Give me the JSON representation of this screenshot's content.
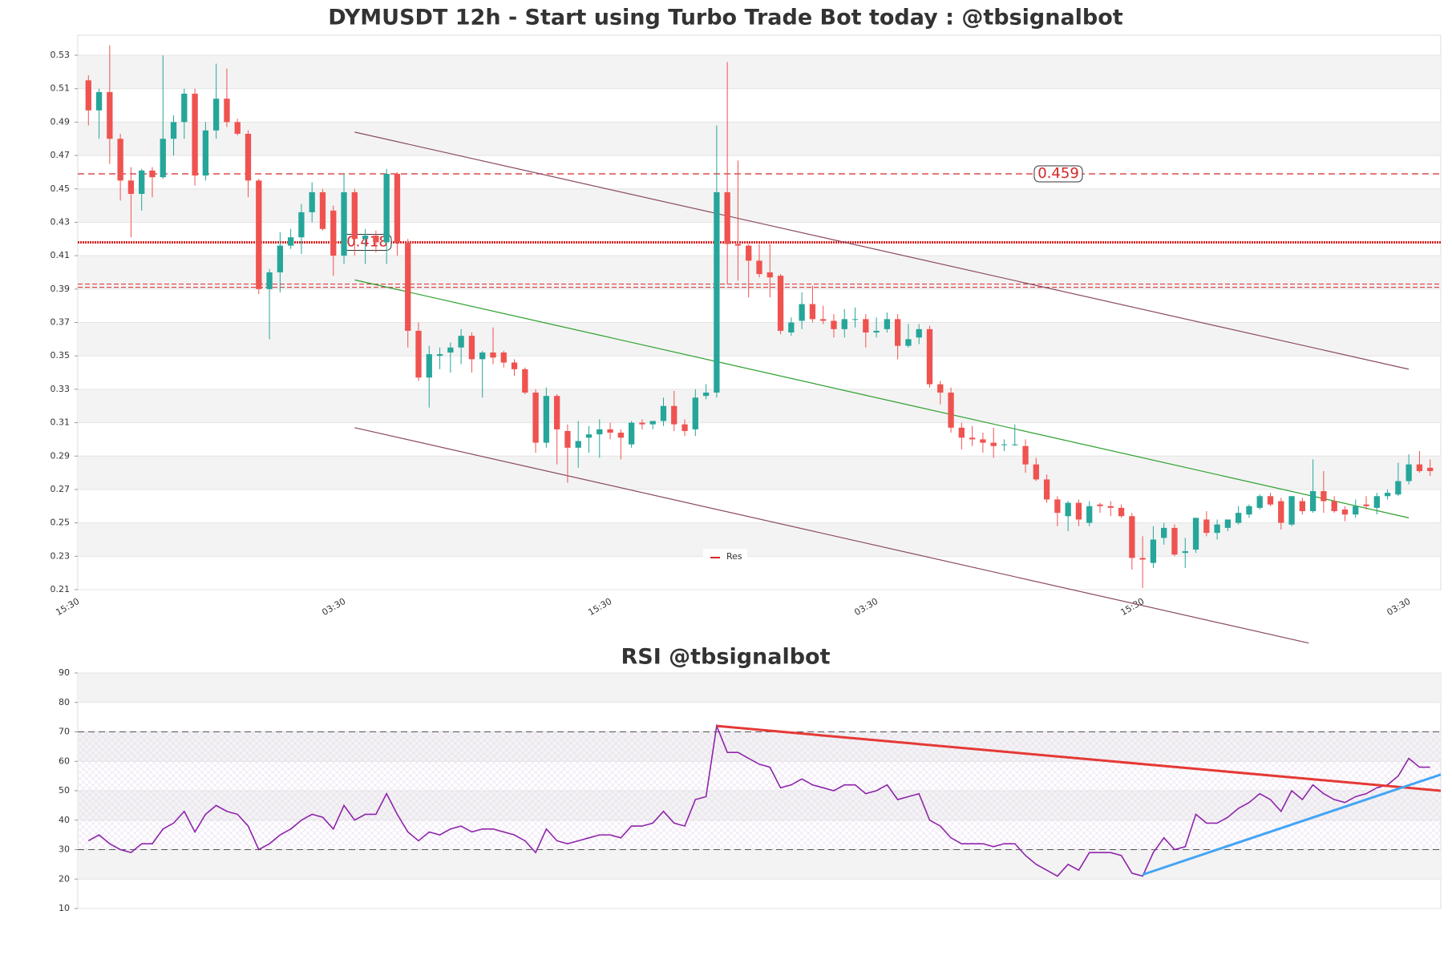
{
  "chart_data": [
    {
      "type": "candlestick",
      "title": "DYMUSDT 12h - Start using Turbo Trade Bot today : @tbsignalbot",
      "categories": [
        "15:30",
        null,
        null,
        null,
        null,
        null,
        null,
        null,
        null,
        null,
        null,
        null,
        null,
        null,
        null,
        null,
        null,
        null,
        null,
        null,
        null,
        null,
        null,
        null,
        null,
        "03:30",
        null,
        null,
        null,
        null,
        null,
        null,
        null,
        null,
        null,
        null,
        null,
        null,
        null,
        null,
        null,
        null,
        null,
        null,
        null,
        null,
        null,
        null,
        null,
        null,
        "15:30",
        null,
        null,
        null,
        null,
        null,
        null,
        null,
        null,
        null,
        null,
        null,
        null,
        null,
        null,
        null,
        null,
        null,
        null,
        null,
        null,
        null,
        null,
        null,
        null,
        "03:30",
        null,
        null,
        null,
        null,
        null,
        null,
        null,
        null,
        null,
        null,
        null,
        null,
        null,
        null,
        null,
        null,
        null,
        null,
        null,
        null,
        null,
        null,
        null,
        null,
        "15:30",
        null,
        null,
        null,
        null,
        null,
        null,
        null,
        null,
        null,
        null,
        null,
        null,
        null,
        null,
        null,
        null,
        null,
        null,
        null,
        null,
        null,
        null,
        null,
        null,
        "03:30",
        null
      ],
      "open": [
        0.515,
        0.497,
        0.508,
        0.48,
        0.455,
        0.447,
        0.461,
        0.457,
        0.48,
        0.49,
        0.507,
        0.458,
        0.485,
        0.504,
        0.49,
        0.483,
        0.455,
        0.39,
        0.4,
        0.416,
        0.421,
        0.436,
        0.448,
        0.437,
        0.41,
        0.448,
        0.42,
        0.422,
        0.418,
        0.459,
        0.418,
        0.365,
        0.337,
        0.35,
        0.352,
        0.355,
        0.362,
        0.348,
        0.352,
        0.352,
        0.346,
        0.342,
        0.328,
        0.298,
        0.326,
        0.305,
        0.295,
        0.301,
        0.303,
        0.306,
        0.304,
        0.297,
        0.31,
        0.309,
        0.311,
        0.32,
        0.309,
        0.306,
        0.326,
        0.328,
        0.448,
        0.417,
        0.416,
        0.407,
        0.4,
        0.398,
        0.364,
        0.371,
        0.381,
        0.372,
        0.371,
        0.366,
        0.372,
        0.372,
        0.364,
        0.366,
        0.372,
        0.356,
        0.361,
        0.366,
        0.333,
        0.328,
        0.307,
        0.301,
        0.3,
        0.298,
        0.297,
        0.297,
        0.296,
        0.285,
        0.276,
        0.264,
        0.254,
        0.262,
        0.25,
        0.261,
        0.26,
        0.259,
        0.254,
        0.229,
        0.226,
        0.241,
        0.247,
        0.232,
        0.234,
        0.252,
        0.244,
        0.247,
        0.25,
        0.255,
        0.259,
        0.266,
        0.263,
        0.249,
        0.263,
        0.257,
        0.269,
        0.263,
        0.258,
        0.255,
        0.261,
        0.259,
        0.266,
        0.267,
        0.275,
        0.285,
        0.283
      ],
      "high": [
        0.518,
        0.51,
        0.536,
        0.483,
        0.463,
        0.462,
        0.463,
        0.53,
        0.494,
        0.51,
        0.51,
        0.49,
        0.525,
        0.522,
        0.492,
        0.485,
        0.456,
        0.402,
        0.424,
        0.426,
        0.441,
        0.454,
        0.45,
        0.44,
        0.459,
        0.45,
        0.426,
        0.425,
        0.462,
        0.46,
        0.42,
        0.37,
        0.356,
        0.355,
        0.358,
        0.366,
        0.364,
        0.353,
        0.367,
        0.353,
        0.348,
        0.343,
        0.33,
        0.331,
        0.327,
        0.309,
        0.311,
        0.308,
        0.312,
        0.31,
        0.306,
        0.311,
        0.312,
        0.311,
        0.325,
        0.329,
        0.312,
        0.33,
        0.333,
        0.488,
        0.526,
        0.467,
        0.417,
        0.417,
        0.417,
        0.399,
        0.373,
        0.388,
        0.392,
        0.38,
        0.375,
        0.378,
        0.379,
        0.375,
        0.373,
        0.376,
        0.375,
        0.369,
        0.369,
        0.368,
        0.335,
        0.331,
        0.31,
        0.308,
        0.304,
        0.307,
        0.3,
        0.309,
        0.3,
        0.289,
        0.279,
        0.266,
        0.263,
        0.264,
        0.263,
        0.262,
        0.263,
        0.261,
        0.256,
        0.242,
        0.248,
        0.25,
        0.249,
        0.241,
        0.252,
        0.257,
        0.252,
        0.252,
        0.26,
        0.261,
        0.267,
        0.268,
        0.265,
        0.266,
        0.265,
        0.288,
        0.281,
        0.266,
        0.26,
        0.264,
        0.266,
        0.268,
        0.27,
        0.286,
        0.291,
        0.293,
        0.288
      ],
      "low": [
        0.488,
        0.48,
        0.465,
        0.443,
        0.421,
        0.437,
        0.445,
        0.456,
        0.47,
        0.48,
        0.452,
        0.455,
        0.48,
        0.487,
        0.482,
        0.445,
        0.387,
        0.36,
        0.388,
        0.414,
        0.411,
        0.43,
        0.425,
        0.398,
        0.405,
        0.41,
        0.405,
        0.412,
        0.405,
        0.41,
        0.355,
        0.335,
        0.319,
        0.342,
        0.34,
        0.345,
        0.34,
        0.325,
        0.345,
        0.343,
        0.338,
        0.327,
        0.292,
        0.295,
        0.285,
        0.274,
        0.283,
        0.292,
        0.289,
        0.3,
        0.288,
        0.295,
        0.306,
        0.306,
        0.308,
        0.305,
        0.302,
        0.302,
        0.324,
        0.325,
        0.393,
        0.395,
        0.385,
        0.397,
        0.385,
        0.363,
        0.362,
        0.366,
        0.37,
        0.369,
        0.361,
        0.361,
        0.367,
        0.355,
        0.361,
        0.364,
        0.348,
        0.355,
        0.357,
        0.331,
        0.321,
        0.304,
        0.294,
        0.296,
        0.292,
        0.289,
        0.293,
        0.296,
        0.28,
        0.275,
        0.262,
        0.248,
        0.245,
        0.248,
        0.248,
        0.256,
        0.254,
        0.253,
        0.222,
        0.211,
        0.223,
        0.237,
        0.23,
        0.223,
        0.232,
        0.242,
        0.24,
        0.245,
        0.249,
        0.253,
        0.258,
        0.26,
        0.246,
        0.248,
        0.255,
        0.256,
        0.256,
        0.256,
        0.251,
        0.253,
        0.258,
        0.255,
        0.264,
        0.266,
        0.273,
        0.28,
        0.278
      ],
      "close": [
        0.497,
        0.508,
        0.48,
        0.455,
        0.447,
        0.461,
        0.457,
        0.48,
        0.49,
        0.507,
        0.458,
        0.485,
        0.504,
        0.49,
        0.483,
        0.455,
        0.39,
        0.4,
        0.416,
        0.421,
        0.436,
        0.448,
        0.426,
        0.41,
        0.448,
        0.42,
        0.422,
        0.418,
        0.459,
        0.418,
        0.365,
        0.337,
        0.351,
        0.351,
        0.355,
        0.362,
        0.348,
        0.352,
        0.349,
        0.346,
        0.342,
        0.328,
        0.298,
        0.326,
        0.306,
        0.295,
        0.299,
        0.303,
        0.306,
        0.304,
        0.301,
        0.31,
        0.309,
        0.311,
        0.32,
        0.309,
        0.305,
        0.325,
        0.328,
        0.448,
        0.417,
        0.416,
        0.407,
        0.399,
        0.397,
        0.365,
        0.37,
        0.381,
        0.372,
        0.371,
        0.366,
        0.372,
        0.372,
        0.364,
        0.365,
        0.372,
        0.356,
        0.36,
        0.366,
        0.333,
        0.328,
        0.307,
        0.301,
        0.3,
        0.298,
        0.296,
        0.297,
        0.297,
        0.285,
        0.276,
        0.264,
        0.256,
        0.262,
        0.252,
        0.26,
        0.26,
        0.259,
        0.254,
        0.229,
        0.228,
        0.24,
        0.247,
        0.231,
        0.233,
        0.253,
        0.244,
        0.249,
        0.252,
        0.256,
        0.26,
        0.266,
        0.261,
        0.25,
        0.266,
        0.257,
        0.269,
        0.263,
        0.257,
        0.255,
        0.26,
        0.26,
        0.266,
        0.268,
        0.275,
        0.285,
        0.281,
        0.281
      ],
      "up_color": "#26a69a",
      "down_color": "#ef5350",
      "xlim": [
        -1,
        127
      ],
      "ylim": [
        0.21,
        0.542
      ],
      "yticks": [
        0.21,
        0.23,
        0.25,
        0.27,
        0.29,
        0.31,
        0.33,
        0.35,
        0.37,
        0.39,
        0.41,
        0.43,
        0.45,
        0.47,
        0.49,
        0.51,
        0.53
      ],
      "hlines": [
        {
          "value": 0.459,
          "style": "dashed",
          "labeled": true
        },
        {
          "value": 0.418,
          "style": "dotted",
          "labeled": true
        },
        {
          "value": 0.392,
          "style": "double",
          "labeled": false
        }
      ],
      "hline_color": "#d62728",
      "trendlines": [
        {
          "x": [
            25,
            124
          ],
          "y": [
            0.484,
            0.342
          ],
          "color": "#8b4a62"
        },
        {
          "x": [
            25,
            124
          ],
          "y": [
            0.3955,
            0.253
          ],
          "color": "#2ca02c"
        },
        {
          "x": [
            25,
            114.6
          ],
          "y": [
            0.307,
            0.178
          ],
          "color": "#8b4a62"
        }
      ],
      "legend": {
        "name": "Res",
        "color": "#d62728"
      }
    },
    {
      "type": "line",
      "title": "RSI @tbsignalbot",
      "color": "#8e24aa",
      "values": [
        33,
        35,
        32,
        30,
        29,
        32,
        32,
        37,
        39,
        43,
        36,
        42,
        45,
        43,
        42,
        38,
        30,
        32,
        35,
        37,
        40,
        42,
        41,
        37,
        45,
        40,
        42,
        42,
        49,
        42,
        36,
        33,
        36,
        35,
        37,
        38,
        36,
        37,
        37,
        36,
        35,
        33,
        29,
        37,
        33,
        32,
        33,
        34,
        35,
        35,
        34,
        38,
        38,
        39,
        43,
        39,
        38,
        47,
        48,
        72,
        63,
        63,
        61,
        59,
        58,
        51,
        52,
        54,
        52,
        51,
        50,
        52,
        52,
        49,
        50,
        52,
        47,
        48,
        49,
        40,
        38,
        34,
        32,
        32,
        32,
        31,
        32,
        32,
        28,
        25,
        23,
        21,
        25,
        23,
        29,
        29,
        29,
        28,
        22,
        21,
        29,
        34,
        30,
        31,
        42,
        39,
        39,
        41,
        44,
        46,
        49,
        47,
        43,
        50,
        47,
        52,
        49,
        47,
        46,
        48,
        49,
        51,
        52,
        55,
        61,
        58,
        58
      ],
      "xlim": [
        -1,
        127
      ],
      "ylim": [
        10,
        90
      ],
      "yticks": [
        10,
        20,
        30,
        40,
        50,
        60,
        70,
        80,
        90
      ],
      "levels": [
        30,
        70
      ],
      "trendlines": [
        {
          "x": [
            59,
            127
          ],
          "y": [
            72,
            50
          ],
          "color": "#e53935"
        },
        {
          "x": [
            99,
            127
          ],
          "y": [
            21.5,
            55.5
          ],
          "color": "#42a5f5"
        }
      ]
    }
  ]
}
